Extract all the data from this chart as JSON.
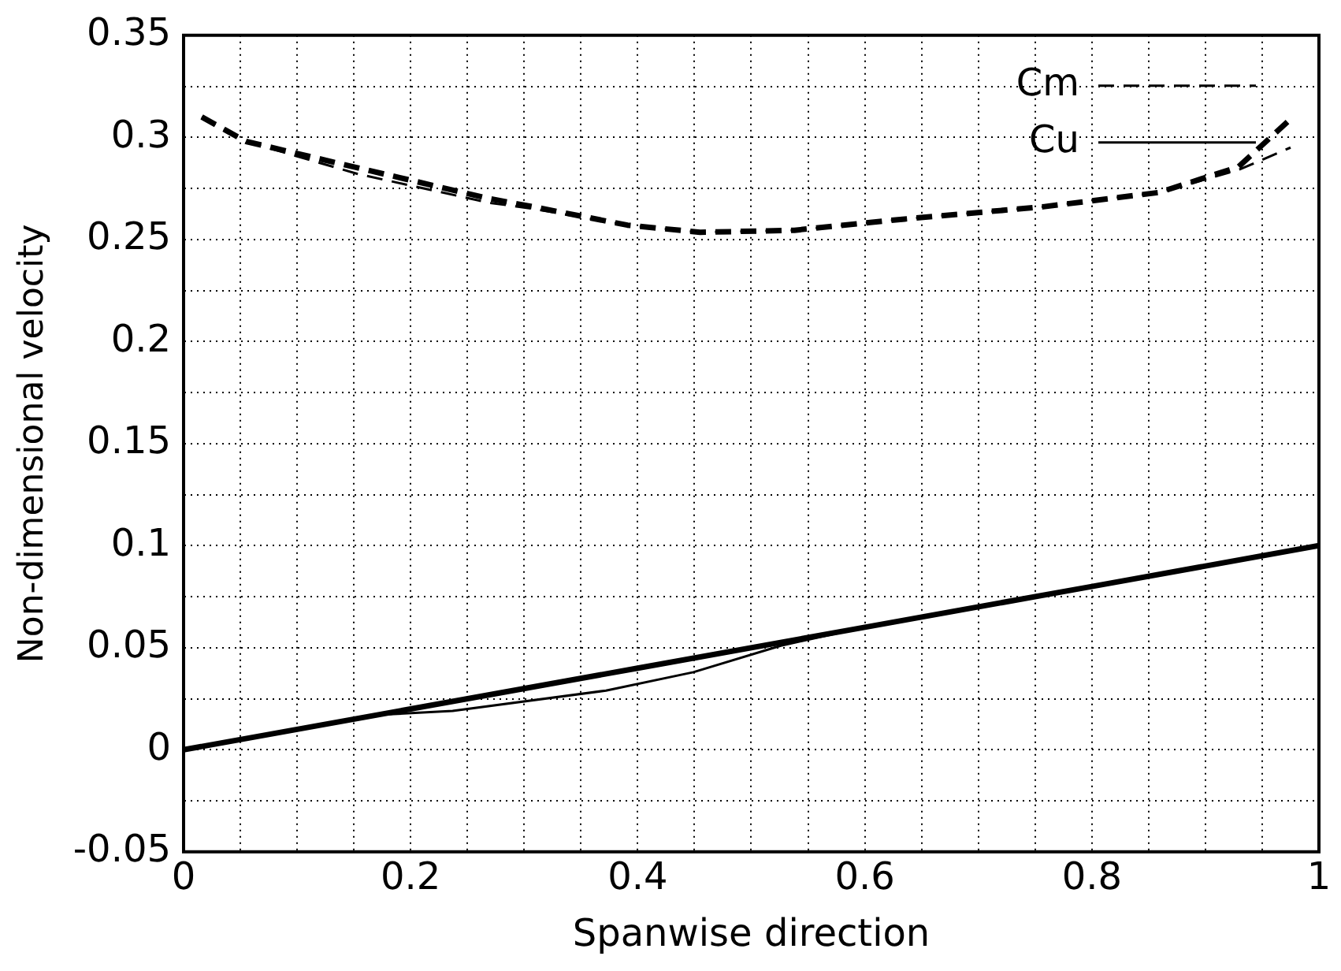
{
  "chart_data": {
    "type": "line",
    "xlabel": "Spanwise direction",
    "ylabel": "Non-dimensional velocity",
    "xlim": [
      0,
      1
    ],
    "ylim": [
      -0.05,
      0.35
    ],
    "xticks": [
      0,
      {
        "value": 0.05,
        "label": null
      },
      {
        "value": 0.1,
        "label": null
      },
      {
        "value": 0.15,
        "label": null
      },
      0.2,
      {
        "value": 0.25,
        "label": null
      },
      {
        "value": 0.3,
        "label": null
      },
      {
        "value": 0.35,
        "label": null
      },
      0.4,
      {
        "value": 0.45,
        "label": null
      },
      {
        "value": 0.5,
        "label": null
      },
      {
        "value": 0.55,
        "label": null
      },
      0.6,
      {
        "value": 0.65,
        "label": null
      },
      {
        "value": 0.7,
        "label": null
      },
      {
        "value": 0.75,
        "label": null
      },
      0.8,
      {
        "value": 0.85,
        "label": null
      },
      {
        "value": 0.9,
        "label": null
      },
      {
        "value": 0.95,
        "label": null
      },
      1
    ],
    "yticks": [
      -0.05,
      {
        "value": -0.025,
        "label": null
      },
      0,
      {
        "value": 0.025,
        "label": null
      },
      0.05,
      {
        "value": 0.075,
        "label": null
      },
      0.1,
      {
        "value": 0.125,
        "label": null
      },
      0.15,
      {
        "value": 0.175,
        "label": null
      },
      0.2,
      {
        "value": 0.225,
        "label": null
      },
      0.25,
      {
        "value": 0.275,
        "label": null
      },
      0.3,
      {
        "value": 0.325,
        "label": null
      },
      0.35
    ],
    "grid": true,
    "legend": "top right",
    "marker": "none",
    "series": [
      {
        "name": "Cm",
        "color": "#000000",
        "line_style": "dashed",
        "x": [
          0.016,
          0.055,
          0.154,
          0.269,
          0.308,
          0.391,
          0.455,
          0.538,
          0.635,
          0.757,
          0.859,
          0.929,
          0.975
        ],
        "values": [
          0.31,
          0.298,
          0.285,
          0.27,
          0.266,
          0.257,
          0.2535,
          0.2545,
          0.26,
          0.266,
          0.273,
          0.2855,
          0.309
        ]
      },
      {
        "color": "#000000",
        "line_style": "dashed",
        "x": [
          0.016,
          0.055,
          0.154,
          0.269,
          0.308,
          0.391,
          0.455,
          0.538,
          0.635,
          0.757,
          0.859,
          0.929,
          0.975
        ],
        "values": [
          0.31,
          0.298,
          0.282,
          0.268,
          0.265,
          0.257,
          0.2535,
          0.2545,
          0.26,
          0.266,
          0.273,
          0.284,
          0.295
        ]
      },
      {
        "name": "Cu",
        "color": "#000000",
        "line_style": "solid",
        "x": [
          0,
          0.2,
          0.4,
          0.6,
          0.8,
          1
        ],
        "values": [
          0,
          0.02,
          0.04,
          0.06,
          0.08,
          0.1
        ]
      },
      {
        "color": "#000000",
        "line_style": "solid",
        "x": [
          0,
          0.167,
          0.237,
          0.372,
          0.449,
          0.526,
          0.6,
          0.8,
          1
        ],
        "values": [
          0,
          0.017,
          0.019,
          0.029,
          0.038,
          0.051,
          0.06,
          0.08,
          0.1
        ]
      }
    ]
  }
}
